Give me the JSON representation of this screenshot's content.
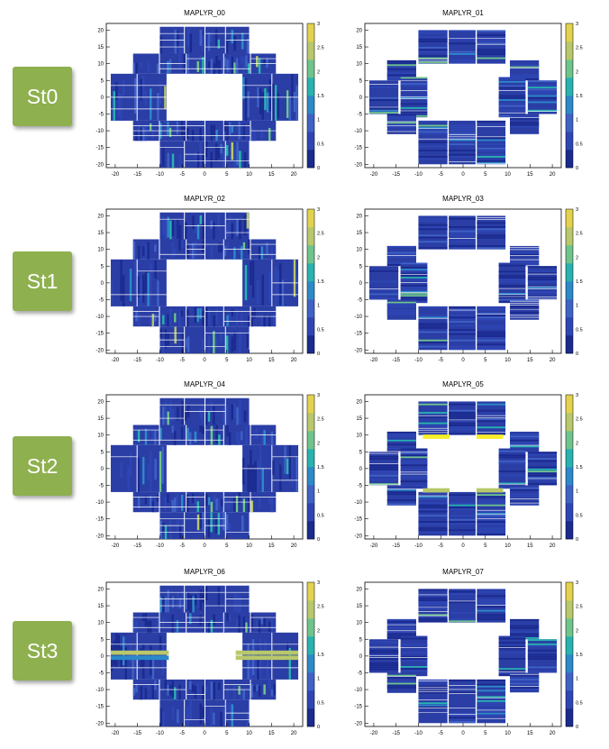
{
  "stations": [
    "St0",
    "St1",
    "St2",
    "St3"
  ],
  "colors": {
    "palette": [
      "#1a2a8f",
      "#2e46b4",
      "#3f62c6",
      "#2d89c9",
      "#27b3b0",
      "#6fc48b",
      "#b8c86a",
      "#e3d24d",
      "#f7ee2a"
    ],
    "station_box": "#8eb04f"
  },
  "chart_data": [
    {
      "type": "heatmap",
      "title": "MAPLYR_00",
      "xlim": [
        -22,
        22
      ],
      "ylim": [
        -21,
        22
      ],
      "zlim": [
        0,
        3
      ],
      "layout": "A",
      "activity": 0.45,
      "xticks": [
        -20,
        -15,
        -10,
        -5,
        0,
        5,
        10,
        15,
        20
      ],
      "yticks": [
        -20,
        -15,
        -10,
        -5,
        0,
        5,
        10,
        15,
        20
      ],
      "zticks": [
        0,
        0.5,
        1,
        1.5,
        2,
        2.5,
        3
      ],
      "highlight_rows": []
    },
    {
      "type": "heatmap",
      "title": "MAPLYR_01",
      "xlim": [
        -22,
        22
      ],
      "ylim": [
        -21,
        22
      ],
      "zlim": [
        0,
        3
      ],
      "layout": "B",
      "activity": 0.4,
      "xticks": [
        -20,
        -15,
        -10,
        -5,
        0,
        5,
        10,
        15,
        20
      ],
      "yticks": [
        -20,
        -15,
        -10,
        -5,
        0,
        5,
        10,
        15,
        20
      ],
      "zticks": [
        0,
        0.5,
        1,
        1.5,
        2,
        2.5,
        3
      ],
      "highlight_rows": []
    },
    {
      "type": "heatmap",
      "title": "MAPLYR_02",
      "xlim": [
        -22,
        22
      ],
      "ylim": [
        -21,
        22
      ],
      "zlim": [
        0,
        3
      ],
      "layout": "A",
      "activity": 0.25,
      "xticks": [
        -20,
        -15,
        -10,
        -5,
        0,
        5,
        10,
        15,
        20
      ],
      "yticks": [
        -20,
        -15,
        -10,
        -5,
        0,
        5,
        10,
        15,
        20
      ],
      "zticks": [
        0,
        0.5,
        1,
        1.5,
        2,
        2.5,
        3
      ],
      "highlight_rows": []
    },
    {
      "type": "heatmap",
      "title": "MAPLYR_03",
      "xlim": [
        -22,
        22
      ],
      "ylim": [
        -21,
        22
      ],
      "zlim": [
        0,
        3
      ],
      "layout": "B",
      "activity": 0.22,
      "xticks": [
        -20,
        -15,
        -10,
        -5,
        0,
        5,
        10,
        15,
        20
      ],
      "yticks": [
        -20,
        -15,
        -10,
        -5,
        0,
        5,
        10,
        15,
        20
      ],
      "zticks": [
        0,
        0.5,
        1,
        1.5,
        2,
        2.5,
        3
      ],
      "highlight_rows": []
    },
    {
      "type": "heatmap",
      "title": "MAPLYR_04",
      "xlim": [
        -22,
        22
      ],
      "ylim": [
        -21,
        22
      ],
      "zlim": [
        0,
        3
      ],
      "layout": "A",
      "activity": 0.3,
      "xticks": [
        -20,
        -15,
        -10,
        -5,
        0,
        5,
        10,
        15,
        20
      ],
      "yticks": [
        -20,
        -15,
        -10,
        -5,
        0,
        5,
        10,
        15,
        20
      ],
      "zticks": [
        0,
        0.5,
        1,
        1.5,
        2,
        2.5,
        3
      ],
      "highlight_rows": []
    },
    {
      "type": "heatmap",
      "title": "MAPLYR_05",
      "xlim": [
        -22,
        22
      ],
      "ylim": [
        -21,
        22
      ],
      "zlim": [
        0,
        3
      ],
      "layout": "B",
      "activity": 0.3,
      "xticks": [
        -20,
        -15,
        -10,
        -5,
        0,
        5,
        10,
        15,
        20
      ],
      "yticks": [
        -20,
        -15,
        -10,
        -5,
        0,
        5,
        10,
        15,
        20
      ],
      "zticks": [
        0,
        0.5,
        1,
        1.5,
        2,
        2.5,
        3
      ],
      "highlight_rows": [
        {
          "y": 9.5,
          "x0": -9,
          "x1": -3,
          "value": 3
        },
        {
          "y": 9.5,
          "x0": 3,
          "x1": 9,
          "value": 3
        },
        {
          "y": -6.5,
          "x0": -9,
          "x1": -3,
          "value": 2.4
        },
        {
          "y": -6.5,
          "x0": 3,
          "x1": 9,
          "value": 2.4
        }
      ]
    },
    {
      "type": "heatmap",
      "title": "MAPLYR_06",
      "xlim": [
        -22,
        22
      ],
      "ylim": [
        -21,
        22
      ],
      "zlim": [
        0,
        3
      ],
      "layout": "A",
      "activity": 0.3,
      "xticks": [
        -20,
        -15,
        -10,
        -5,
        0,
        5,
        10,
        15,
        20
      ],
      "yticks": [
        -20,
        -15,
        -10,
        -5,
        0,
        5,
        10,
        15,
        20
      ],
      "zticks": [
        0,
        0.5,
        1,
        1.5,
        2,
        2.5,
        3
      ],
      "highlight_rows": [
        {
          "y": 1.0,
          "x0": -21,
          "x1": -8,
          "value": 2.4
        },
        {
          "y": -0.5,
          "x0": -21,
          "x1": -8,
          "value": 1.2
        },
        {
          "y": 1.0,
          "x0": 7,
          "x1": 21,
          "value": 2.4
        },
        {
          "y": -0.5,
          "x0": 7,
          "x1": 21,
          "value": 2.4
        }
      ]
    },
    {
      "type": "heatmap",
      "title": "MAPLYR_07",
      "xlim": [
        -22,
        22
      ],
      "ylim": [
        -21,
        22
      ],
      "zlim": [
        0,
        3
      ],
      "layout": "B",
      "activity": 0.3,
      "xticks": [
        -20,
        -15,
        -10,
        -5,
        0,
        5,
        10,
        15,
        20
      ],
      "yticks": [
        -20,
        -15,
        -10,
        -5,
        0,
        5,
        10,
        15,
        20
      ],
      "zticks": [
        0,
        0.5,
        1,
        1.5,
        2,
        2.5,
        3
      ],
      "highlight_rows": []
    }
  ]
}
